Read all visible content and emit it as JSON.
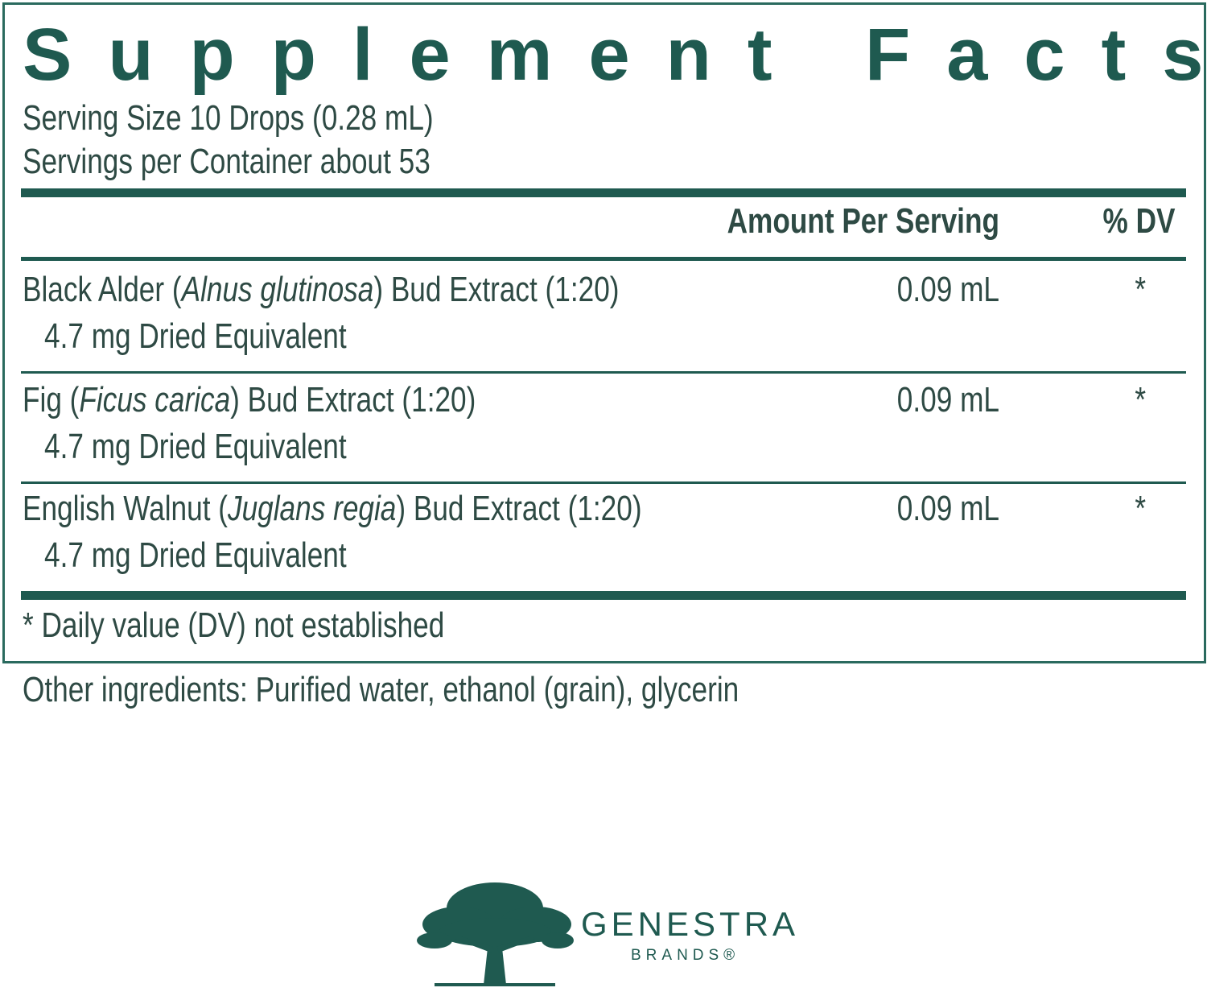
{
  "label": {
    "title": "Supplement Facts",
    "serving_size": "Serving Size 10 Drops (0.28 mL)",
    "servings_per_container": "Servings per Container about 53",
    "header": {
      "amount": "Amount Per Serving",
      "dv": "% DV"
    },
    "rows": [
      {
        "name": [
          "Black Alder (",
          "Alnus glutinosa",
          ") Bud Extract (1:20)"
        ],
        "sub": "4.7 mg Dried Equivalent",
        "amount": "0.09 mL",
        "dv": "*"
      },
      {
        "name": [
          "Fig (",
          "Ficus carica",
          ") Bud Extract (1:20)"
        ],
        "sub": "4.7 mg Dried Equivalent",
        "amount": "0.09 mL",
        "dv": "*"
      },
      {
        "name": [
          "English Walnut (",
          "Juglans regia",
          ") Bud Extract (1:20)"
        ],
        "sub": "4.7 mg Dried Equivalent",
        "amount": "0.09 mL",
        "dv": "*"
      }
    ],
    "footnote": "* Daily value (DV) not established"
  },
  "other_ingredients": "Other ingredients: Purified water, ethanol (grain), glycerin",
  "brand": {
    "name": "GENESTRA",
    "sub": "BRANDS®"
  }
}
